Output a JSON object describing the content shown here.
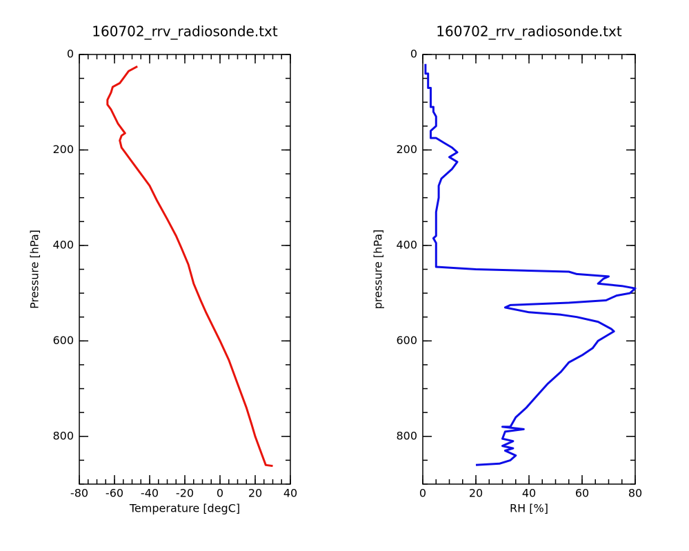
{
  "chart_data": [
    {
      "type": "line",
      "title": "160702_rrv_radiosonde.txt",
      "xlabel": "Temperature [degC]",
      "ylabel": "Pressure [hPa]",
      "x": [
        -47,
        -52,
        -55,
        -57,
        -61,
        -62,
        -64,
        -64,
        -62,
        -60,
        -58,
        -55,
        -54,
        -56,
        -57,
        -56,
        -54,
        -51,
        -48,
        -44,
        -40,
        -36,
        -30,
        -25,
        -22,
        -18,
        -15,
        -11,
        -8,
        -4,
        0,
        5,
        10,
        15,
        18,
        20,
        23,
        26,
        30
      ],
      "series": [
        {
          "color": "#e8140c",
          "values": [
            25,
            35,
            50,
            60,
            68,
            80,
            95,
            105,
            115,
            130,
            145,
            160,
            165,
            170,
            180,
            195,
            205,
            220,
            235,
            255,
            275,
            305,
            345,
            380,
            405,
            440,
            480,
            515,
            540,
            570,
            600,
            640,
            690,
            740,
            775,
            800,
            830,
            860,
            862
          ]
        }
      ],
      "xlim": [
        -80,
        40
      ],
      "xticks": [
        -80,
        -60,
        -40,
        -20,
        0,
        20,
        40
      ],
      "xminorticks": [
        -80,
        -75,
        -70,
        -65,
        -60,
        -55,
        -50,
        -45,
        -40,
        -35,
        -30,
        -25,
        -20,
        -15,
        -10,
        -5,
        0,
        5,
        10,
        15,
        20,
        25,
        30,
        35,
        40
      ],
      "ylim": [
        900,
        0
      ],
      "yticks": [
        0,
        200,
        400,
        600,
        800
      ],
      "yminorticks": [
        0,
        50,
        100,
        150,
        200,
        250,
        300,
        350,
        400,
        450,
        500,
        550,
        600,
        650,
        700,
        750,
        800,
        850,
        900
      ]
    },
    {
      "type": "line",
      "title": "160702_rrv_radiosonde.txt",
      "xlabel": "RH [%]",
      "ylabel": "pressure [hPa]",
      "x": [
        1,
        1,
        2,
        2,
        3,
        3,
        4,
        4,
        5,
        5,
        3,
        3,
        5,
        8,
        11,
        13,
        10,
        13,
        11,
        9,
        7,
        6,
        6,
        5,
        5,
        4,
        5,
        5,
        20,
        55,
        58,
        70,
        68,
        66,
        75,
        80,
        78,
        73,
        69,
        55,
        33,
        31,
        40,
        52,
        58,
        66,
        71,
        72,
        69,
        66,
        64,
        60,
        55,
        52,
        47,
        43,
        39,
        35,
        33,
        30,
        38,
        31,
        30,
        34,
        30,
        34,
        31,
        35,
        33,
        29,
        20
      ],
      "series": [
        {
          "color": "#0d0de6",
          "values": [
            20,
            40,
            40,
            70,
            70,
            110,
            110,
            120,
            130,
            150,
            160,
            175,
            175,
            185,
            195,
            205,
            215,
            225,
            240,
            250,
            260,
            275,
            300,
            330,
            380,
            385,
            395,
            445,
            450,
            455,
            460,
            465,
            470,
            480,
            485,
            490,
            500,
            505,
            515,
            520,
            525,
            530,
            540,
            545,
            550,
            560,
            575,
            580,
            590,
            600,
            615,
            630,
            645,
            665,
            690,
            715,
            740,
            760,
            780,
            780,
            785,
            790,
            805,
            810,
            820,
            825,
            830,
            840,
            850,
            857,
            860
          ]
        }
      ],
      "xlim": [
        0,
        80
      ],
      "xticks": [
        0,
        20,
        40,
        60,
        80
      ],
      "xminorticks": [
        0,
        5,
        10,
        15,
        20,
        25,
        30,
        35,
        40,
        45,
        50,
        55,
        60,
        65,
        70,
        75,
        80
      ],
      "ylim": [
        900,
        0
      ],
      "yticks": [
        0,
        200,
        400,
        600,
        800
      ],
      "yminorticks": [
        0,
        50,
        100,
        150,
        200,
        250,
        300,
        350,
        400,
        450,
        500,
        550,
        600,
        650,
        700,
        750,
        800,
        850,
        900
      ]
    }
  ]
}
